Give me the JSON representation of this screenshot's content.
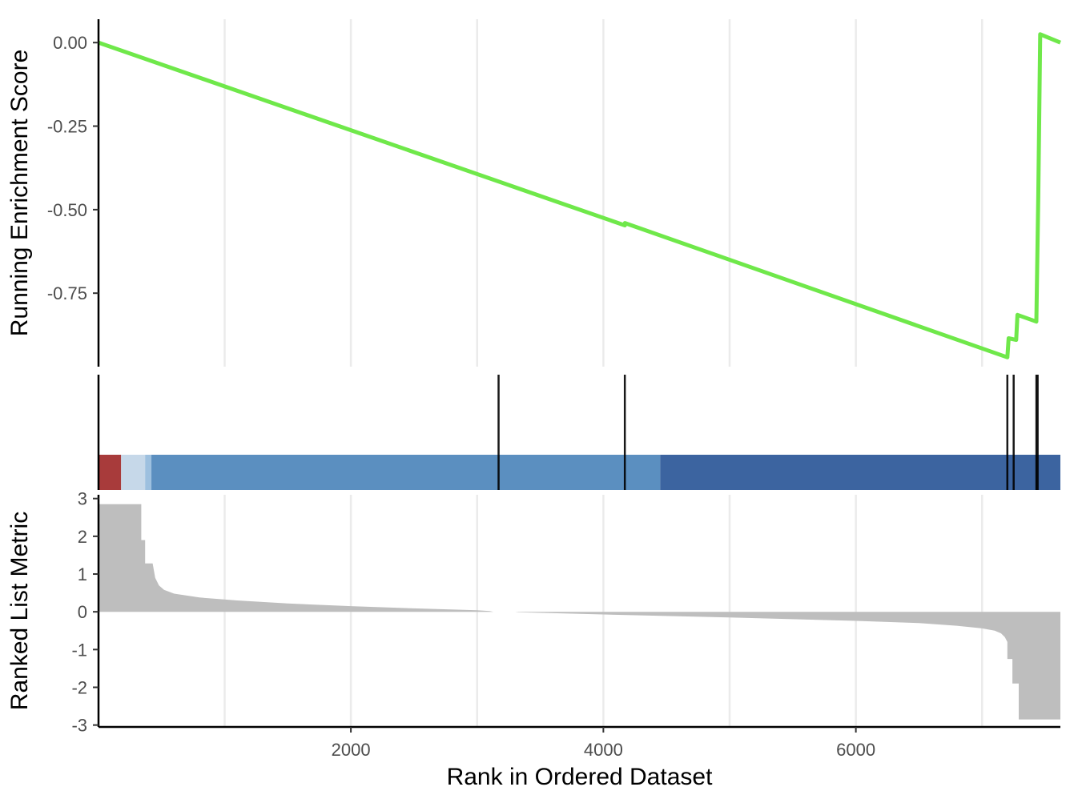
{
  "chart_data": [
    {
      "panel": "running-enrichment",
      "type": "line",
      "ylabel": "Running Enrichment Score",
      "xlabel": "",
      "xlim": [
        1,
        7620
      ],
      "ylim": [
        -0.97,
        0.07
      ],
      "yticks": [
        0.0,
        -0.25,
        -0.5,
        -0.75
      ],
      "ytick_labels": [
        "0.00",
        "-0.25",
        "-0.50",
        "-0.75"
      ],
      "grid": "vertical",
      "line_color": "#6fe84a",
      "x": [
        1,
        4170,
        4171,
        7200,
        7210,
        7270,
        7280,
        7430,
        7445,
        7460,
        7620
      ],
      "values": [
        0.0,
        -0.547,
        -0.54,
        -0.942,
        -0.885,
        -0.89,
        -0.815,
        -0.835,
        -0.46,
        0.025,
        0.0
      ]
    },
    {
      "panel": "hits",
      "type": "bar",
      "xlabel": "",
      "hit_positions": [
        3170,
        4170,
        7200,
        7250,
        7430,
        7440
      ],
      "color_bands": [
        {
          "from": 1,
          "to": 180,
          "color": "#a83b3b"
        },
        {
          "from": 180,
          "to": 370,
          "color": "#c6d8e9"
        },
        {
          "from": 370,
          "to": 420,
          "color": "#9dc0df"
        },
        {
          "from": 420,
          "to": 4450,
          "color": "#5b8fc0"
        },
        {
          "from": 4450,
          "to": 7620,
          "color": "#3c64a0"
        }
      ]
    },
    {
      "panel": "ranked-list",
      "type": "area",
      "ylabel": "Ranked List Metric",
      "xlabel": "Rank in Ordered Dataset",
      "xlim": [
        1,
        7620
      ],
      "ylim": [
        -3.05,
        3.1
      ],
      "yticks": [
        3,
        2,
        1,
        0,
        -1,
        -2,
        -3
      ],
      "ytick_labels": [
        "3",
        "2",
        "1",
        "0",
        "-1",
        "-2",
        "-3"
      ],
      "xticks": [
        2000,
        4000,
        6000
      ],
      "xtick_labels": [
        "2000",
        "4000",
        "6000"
      ],
      "grid": "vertical",
      "fill_color": "#bebebe",
      "x": [
        1,
        340,
        340,
        370,
        370,
        430,
        450,
        480,
        520,
        600,
        800,
        1100,
        1500,
        2000,
        2500,
        3000,
        3100,
        3130,
        3300,
        3330,
        4000,
        5000,
        6000,
        6500,
        6800,
        7000,
        7100,
        7150,
        7180,
        7200,
        7200,
        7240,
        7240,
        7290,
        7290,
        7620
      ],
      "values": [
        2.85,
        2.85,
        1.9,
        1.9,
        1.28,
        1.28,
        0.9,
        0.7,
        0.58,
        0.48,
        0.38,
        0.3,
        0.22,
        0.15,
        0.09,
        0.04,
        0.02,
        0.0,
        0.0,
        -0.01,
        -0.07,
        -0.15,
        -0.24,
        -0.3,
        -0.37,
        -0.44,
        -0.5,
        -0.57,
        -0.67,
        -0.8,
        -1.25,
        -1.25,
        -1.9,
        -1.9,
        -2.85,
        -2.85
      ]
    }
  ]
}
